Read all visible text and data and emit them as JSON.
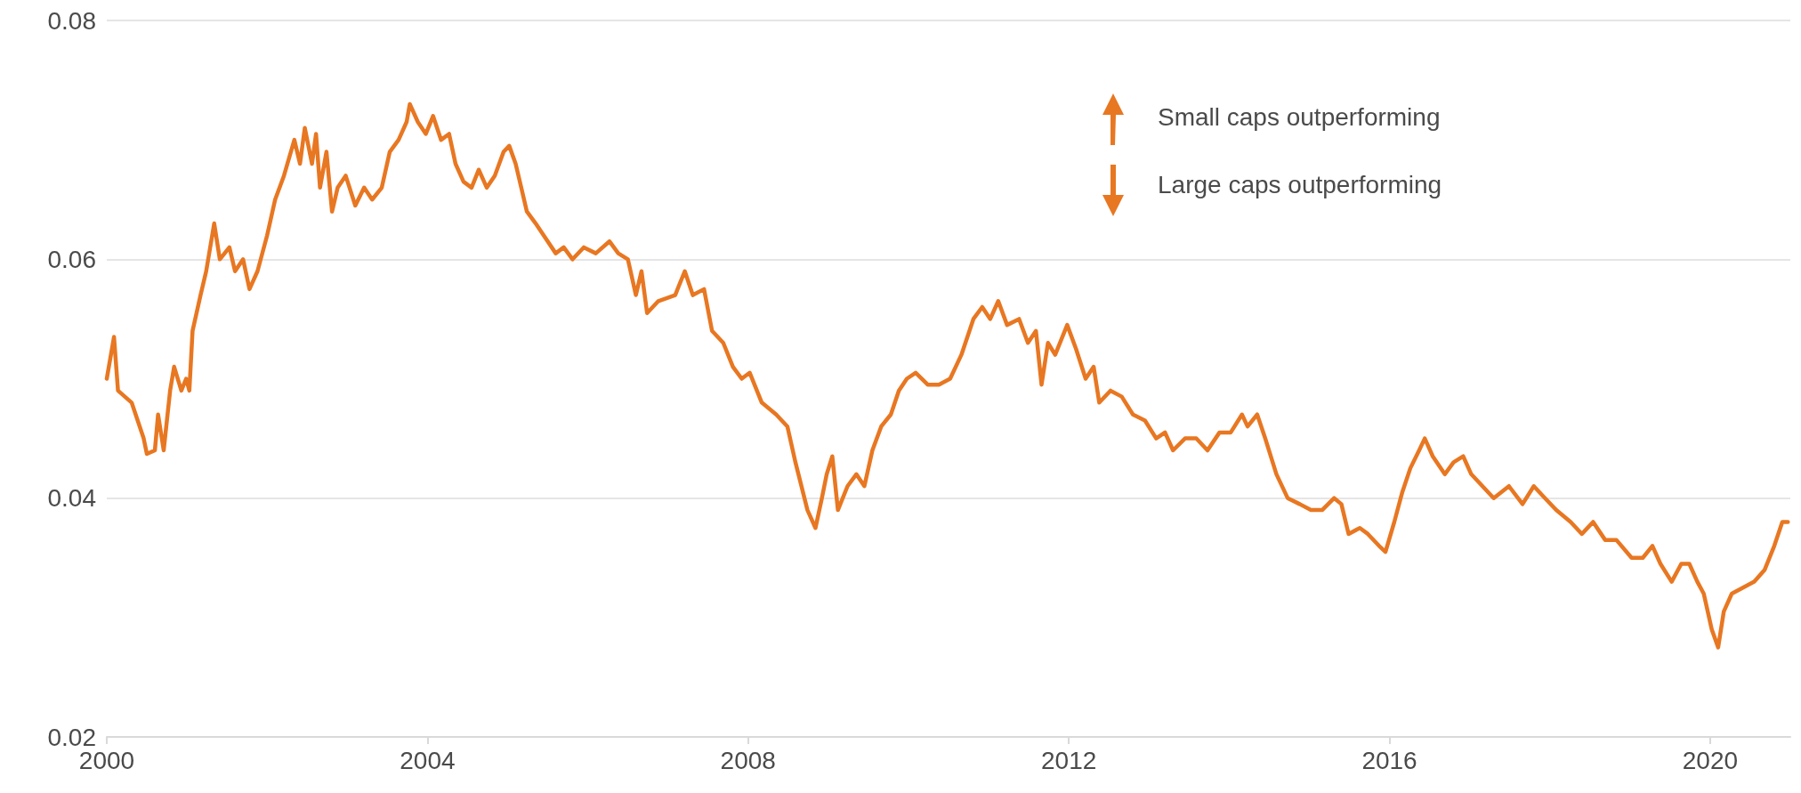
{
  "chart_data": {
    "type": "line",
    "xlim": [
      2000,
      2021
    ],
    "xticks": [
      2000,
      2004,
      2008,
      2012,
      2016,
      2020
    ],
    "ylim": [
      0.02,
      0.08
    ],
    "yticks": [
      0.02,
      0.04,
      0.06,
      0.08
    ],
    "grid": "y",
    "annotations": [
      "Small caps outperforming",
      "Large caps outperforming"
    ],
    "series": [
      {
        "color": "#e87722",
        "x": [
          2000.0,
          2000.09,
          2000.14,
          2000.31,
          2000.46,
          2000.5,
          2000.6,
          2000.64,
          2000.71,
          2000.79,
          2000.84,
          2000.93,
          2000.99,
          2001.03,
          2001.07,
          2001.17,
          2001.24,
          2001.34,
          2001.41,
          2001.53,
          2001.6,
          2001.7,
          2001.78,
          2001.88,
          2002.0,
          2002.1,
          2002.21,
          2002.34,
          2002.41,
          2002.47,
          2002.56,
          2002.61,
          2002.66,
          2002.74,
          2002.81,
          2002.88,
          2002.98,
          2003.1,
          2003.21,
          2003.31,
          2003.43,
          2003.53,
          2003.64,
          2003.74,
          2003.78,
          2003.88,
          2003.98,
          2004.07,
          2004.17,
          2004.27,
          2004.35,
          2004.45,
          2004.55,
          2004.64,
          2004.74,
          2004.84,
          2004.95,
          2005.02,
          2005.1,
          2005.17,
          2005.24,
          2005.35,
          2005.45,
          2005.6,
          2005.7,
          2005.81,
          2005.95,
          2006.1,
          2006.27,
          2006.38,
          2006.5,
          2006.6,
          2006.67,
          2006.74,
          2006.88,
          2007.09,
          2007.21,
          2007.31,
          2007.45,
          2007.55,
          2007.69,
          2007.81,
          2007.92,
          2008.02,
          2008.17,
          2008.35,
          2008.49,
          2008.59,
          2008.74,
          2008.84,
          2008.92,
          2008.98,
          2009.05,
          2009.12,
          2009.24,
          2009.35,
          2009.45,
          2009.55,
          2009.66,
          2009.78,
          2009.88,
          2009.98,
          2010.09,
          2010.24,
          2010.38,
          2010.52,
          2010.66,
          2010.81,
          2010.92,
          2011.02,
          2011.12,
          2011.23,
          2011.38,
          2011.49,
          2011.59,
          2011.66,
          2011.74,
          2011.83,
          2011.98,
          2012.09,
          2012.21,
          2012.31,
          2012.38,
          2012.52,
          2012.66,
          2012.8,
          2012.95,
          2013.09,
          2013.2,
          2013.3,
          2013.45,
          2013.59,
          2013.73,
          2013.88,
          2014.02,
          2014.16,
          2014.23,
          2014.35,
          2014.45,
          2014.59,
          2014.73,
          2014.88,
          2015.02,
          2015.16,
          2015.31,
          2015.4,
          2015.49,
          2015.63,
          2015.73,
          2015.87,
          2015.95,
          2016.06,
          2016.16,
          2016.26,
          2016.37,
          2016.44,
          2016.54,
          2016.69,
          2016.8,
          2016.92,
          2017.02,
          2017.16,
          2017.3,
          2017.49,
          2017.66,
          2017.8,
          2017.94,
          2018.08,
          2018.26,
          2018.4,
          2018.54,
          2018.69,
          2018.83,
          2019.02,
          2019.16,
          2019.28,
          2019.38,
          2019.52,
          2019.64,
          2019.74,
          2019.84,
          2019.92,
          2020.02,
          2020.1,
          2020.17,
          2020.27,
          2020.41,
          2020.55,
          2020.68,
          2020.8,
          2020.9,
          2020.97
        ],
        "values": [
          0.05,
          0.0535,
          0.049,
          0.048,
          0.045,
          0.0437,
          0.044,
          0.047,
          0.044,
          0.049,
          0.051,
          0.049,
          0.05,
          0.049,
          0.054,
          0.057,
          0.059,
          0.063,
          0.06,
          0.061,
          0.059,
          0.06,
          0.0575,
          0.059,
          0.062,
          0.065,
          0.067,
          0.07,
          0.068,
          0.071,
          0.068,
          0.0705,
          0.066,
          0.069,
          0.064,
          0.066,
          0.067,
          0.0645,
          0.066,
          0.065,
          0.066,
          0.069,
          0.07,
          0.0715,
          0.073,
          0.0715,
          0.0705,
          0.072,
          0.07,
          0.0705,
          0.068,
          0.0665,
          0.066,
          0.0675,
          0.066,
          0.067,
          0.069,
          0.0695,
          0.068,
          0.066,
          0.064,
          0.063,
          0.062,
          0.0605,
          0.061,
          0.06,
          0.061,
          0.0605,
          0.0615,
          0.0605,
          0.06,
          0.057,
          0.059,
          0.0555,
          0.0565,
          0.057,
          0.059,
          0.057,
          0.0575,
          0.054,
          0.053,
          0.051,
          0.05,
          0.0505,
          0.048,
          0.047,
          0.046,
          0.043,
          0.039,
          0.0375,
          0.04,
          0.042,
          0.0435,
          0.039,
          0.041,
          0.042,
          0.041,
          0.044,
          0.046,
          0.047,
          0.049,
          0.05,
          0.0505,
          0.0495,
          0.0495,
          0.05,
          0.052,
          0.055,
          0.056,
          0.055,
          0.0565,
          0.0545,
          0.055,
          0.053,
          0.054,
          0.0495,
          0.053,
          0.052,
          0.0545,
          0.0525,
          0.05,
          0.051,
          0.048,
          0.049,
          0.0485,
          0.047,
          0.0465,
          0.045,
          0.0455,
          0.044,
          0.045,
          0.045,
          0.044,
          0.0455,
          0.0455,
          0.047,
          0.046,
          0.047,
          0.045,
          0.042,
          0.04,
          0.0395,
          0.039,
          0.039,
          0.04,
          0.0395,
          0.037,
          0.0375,
          0.037,
          0.036,
          0.0355,
          0.038,
          0.0405,
          0.0425,
          0.044,
          0.045,
          0.0435,
          0.042,
          0.043,
          0.0435,
          0.042,
          0.041,
          0.04,
          0.041,
          0.0395,
          0.041,
          0.04,
          0.039,
          0.038,
          0.037,
          0.038,
          0.0365,
          0.0365,
          0.035,
          0.035,
          0.036,
          0.0345,
          0.033,
          0.0345,
          0.0345,
          0.033,
          0.032,
          0.029,
          0.0275,
          0.0305,
          0.032,
          0.0325,
          0.033,
          0.034,
          0.036,
          0.038,
          0.038
        ]
      }
    ]
  }
}
